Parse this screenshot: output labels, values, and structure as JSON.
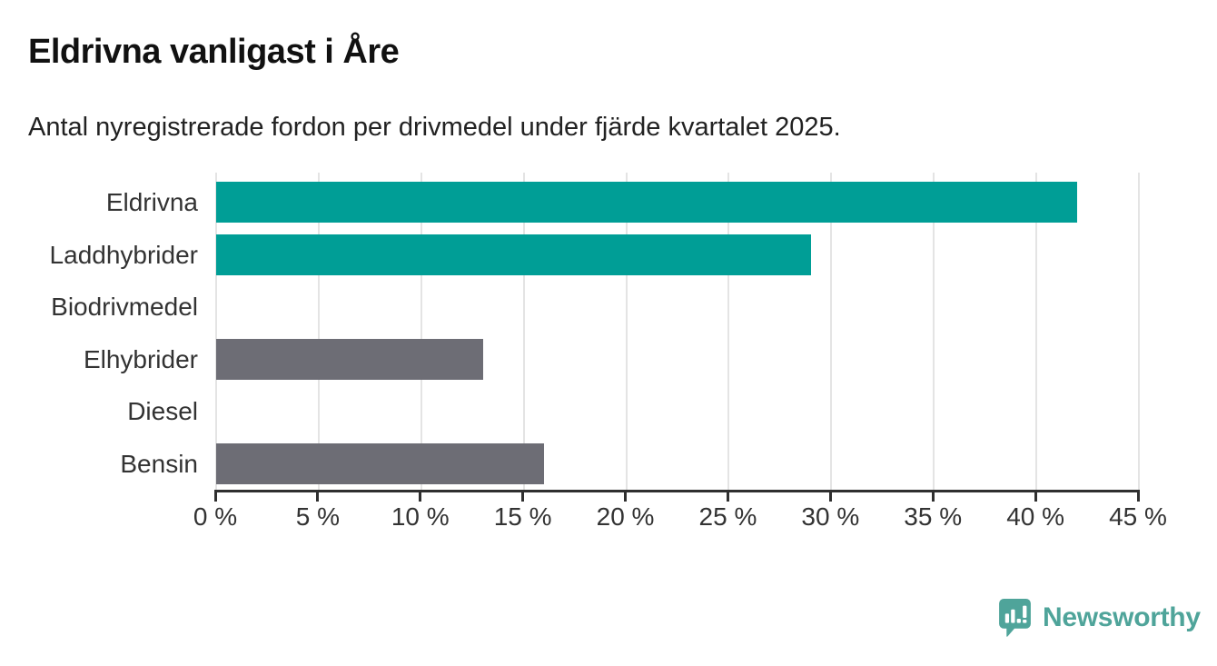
{
  "chart_data": {
    "type": "bar",
    "orientation": "horizontal",
    "title": "Eldrivna vanligast i Åre",
    "subtitle": "Antal nyregistrerade fordon per drivmedel under fjärde kvartalet 2025.",
    "categories": [
      "Eldrivna",
      "Laddhybrider",
      "Biodrivmedel",
      "Elhybrider",
      "Diesel",
      "Bensin"
    ],
    "values": [
      42,
      29,
      0,
      13,
      0,
      16
    ],
    "unit": "%",
    "xlabel": "",
    "ylabel": "",
    "xlim": [
      0,
      45
    ],
    "x_tick_values": [
      0,
      5,
      10,
      15,
      20,
      25,
      30,
      35,
      40,
      45
    ],
    "x_tick_labels": [
      "0 %",
      "5 %",
      "10 %",
      "15 %",
      "20 %",
      "25 %",
      "30 %",
      "35 %",
      "40 %",
      "45 %"
    ],
    "grid": true,
    "legend": false,
    "bar_colors": [
      "#009E96",
      "#009E96",
      "#6D6D75",
      "#6D6D75",
      "#6D6D75",
      "#6D6D75"
    ]
  },
  "colors": {
    "background": "#ffffff",
    "highlight": "#009E96",
    "default_bar": "#6D6D75",
    "grid": "#e4e4e4",
    "axis": "#2f2f2f",
    "title_text": "#111111",
    "label_text": "#333333"
  },
  "branding": {
    "logo_text": "Newsworthy",
    "logo_icon": "speech-bubble-bar-chart-icon",
    "logo_color": "#4FA49A"
  }
}
